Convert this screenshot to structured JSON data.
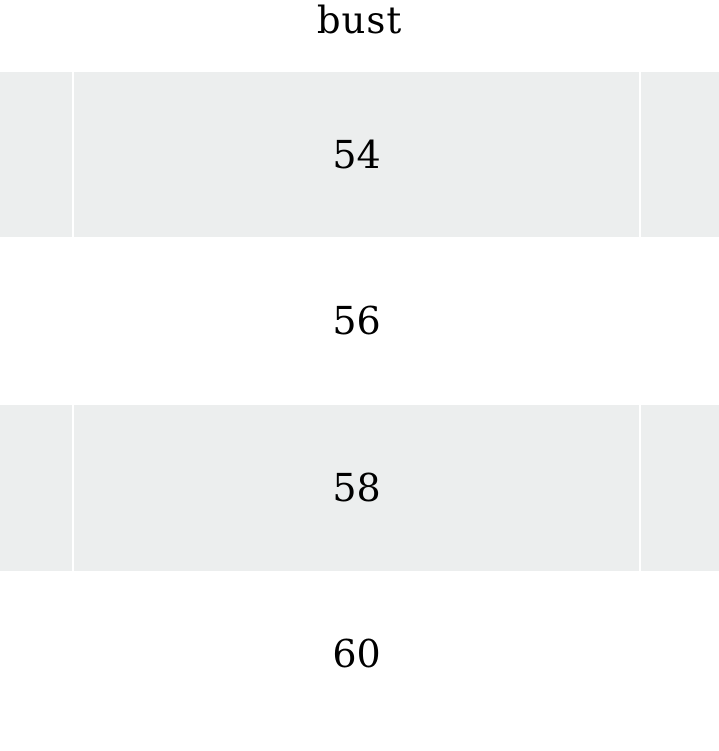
{
  "table": {
    "header": "bust",
    "rows": [
      "54",
      "56",
      "58",
      "60"
    ],
    "colors": {
      "stripe": "#eceeee",
      "background": "#ffffff"
    }
  }
}
